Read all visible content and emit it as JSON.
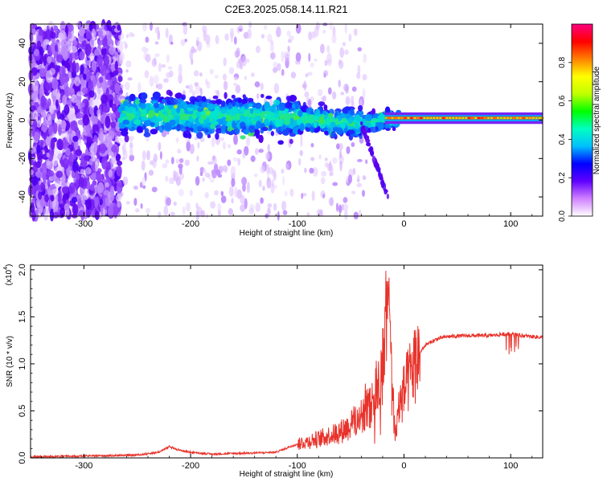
{
  "title": "C2E3.2025.058.14.11.R21",
  "colors": {
    "snr_line": "#e8322a",
    "ridge": "#3cc83c",
    "spectrogram_low": "#e8d8ff",
    "spectrogram_mid": "#5000e0",
    "spectrogram_high": "#ff0000"
  },
  "chart_data": [
    {
      "type": "heatmap",
      "xlabel": "Height of straight line (km)",
      "ylabel": "Frequency (Hz)",
      "xlim": [
        -350,
        130
      ],
      "ylim": [
        -50,
        50
      ],
      "x_ticks": [
        -300,
        -200,
        -100,
        0,
        100
      ],
      "y_ticks": [
        -40,
        -20,
        0,
        20,
        40
      ],
      "grid": false,
      "colorbar": {
        "label": "Normalized spectral amplitude",
        "range": [
          0,
          1
        ],
        "ticks": [
          "0.0",
          "0.2",
          "0.4",
          "0.6",
          "0.8"
        ],
        "colors": [
          "#ffffff",
          "#d080ff",
          "#6000ff",
          "#0000ff",
          "#00c0ff",
          "#00ffc0",
          "#00ff00",
          "#c0ff00",
          "#ffff00",
          "#ff8000",
          "#ff0000",
          "#ff0080"
        ]
      },
      "ridge_frequency_hz": [
        {
          "x": -260,
          "y": 3
        },
        {
          "x": -200,
          "y": 2
        },
        {
          "x": -150,
          "y": 2
        },
        {
          "x": -100,
          "y": 1
        },
        {
          "x": -60,
          "y": -1
        },
        {
          "x": -40,
          "y": -2
        },
        {
          "x": -20,
          "y": 0
        },
        {
          "x": 0,
          "y": 1
        },
        {
          "x": 50,
          "y": 1
        },
        {
          "x": 100,
          "y": 1
        },
        {
          "x": 130,
          "y": 1
        }
      ]
    },
    {
      "type": "line",
      "xlabel": "Height of straight line (km)",
      "ylabel": "SNR (10 * v/v)",
      "y_multiplier": "(x10",
      "y_multiplier_exp": "4",
      "xlim": [
        -350,
        130
      ],
      "ylim": [
        0,
        2.05
      ],
      "x_ticks": [
        -300,
        -200,
        -100,
        0,
        100
      ],
      "y_ticks": [
        "0.0",
        "0.5",
        "1.0",
        "1.5",
        "2.0"
      ],
      "grid": false,
      "series": [
        {
          "x": [
            -350,
            -300,
            -250,
            -230,
            -220,
            -210,
            -200,
            -180,
            -150,
            -120,
            -100,
            -80,
            -60,
            -50,
            -40,
            -30,
            -22,
            -18,
            -15,
            -12,
            -8,
            -5,
            0,
            5,
            10,
            15,
            20,
            30,
            40,
            60,
            80,
            100,
            110,
            130
          ],
          "y": [
            0.01,
            0.02,
            0.03,
            0.06,
            0.12,
            0.08,
            0.06,
            0.04,
            0.05,
            0.06,
            0.15,
            0.2,
            0.28,
            0.35,
            0.45,
            0.6,
            0.85,
            1.2,
            1.7,
            0.9,
            0.25,
            0.55,
            0.7,
            0.85,
            1.0,
            1.12,
            1.2,
            1.26,
            1.29,
            1.3,
            1.3,
            1.32,
            1.3,
            1.28
          ]
        }
      ]
    }
  ]
}
